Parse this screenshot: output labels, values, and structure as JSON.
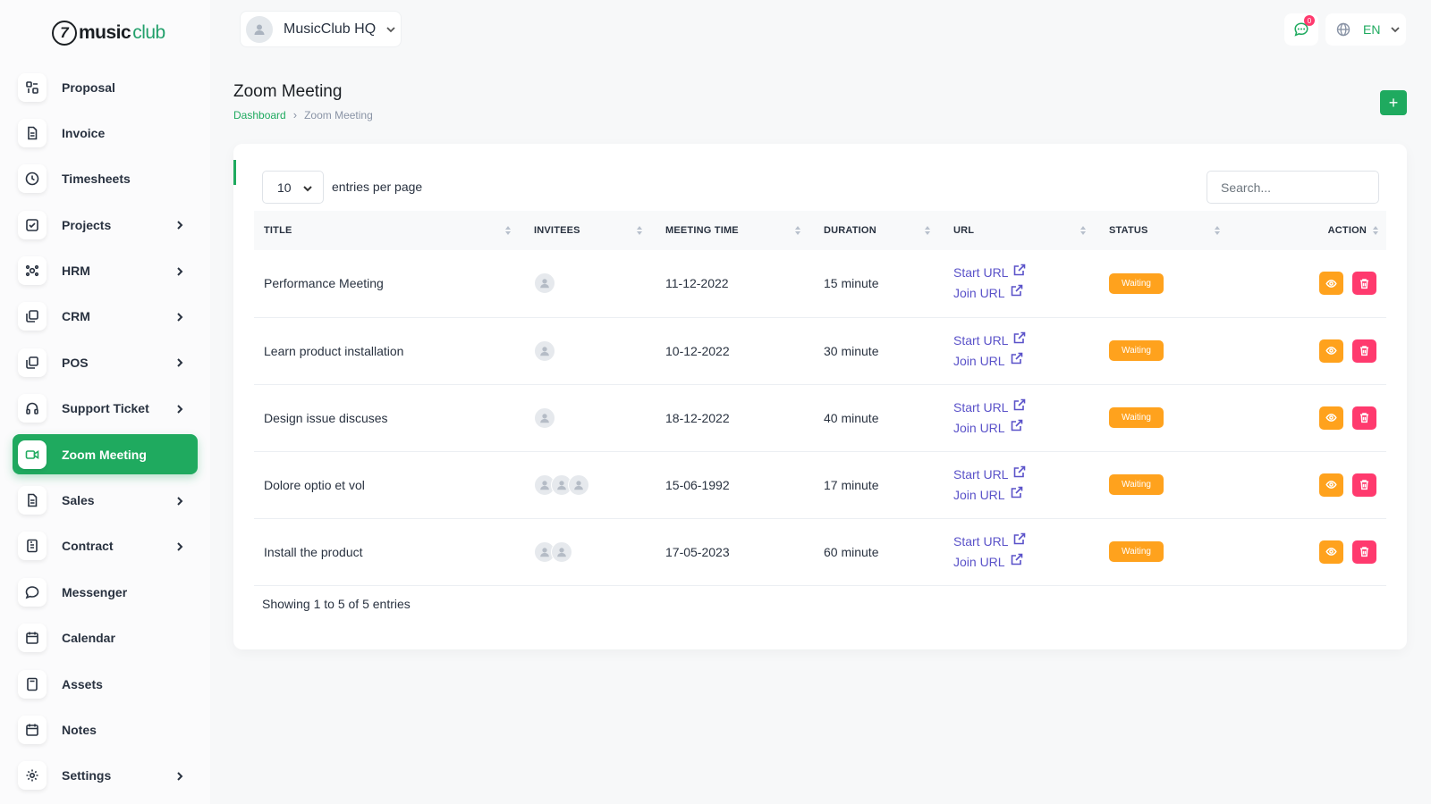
{
  "brand": {
    "mark": "7",
    "word_bold": "music",
    "word_light": "club"
  },
  "sidebar": {
    "items": [
      {
        "label": "Proposal",
        "icon": "proposal-icon",
        "has_children": false,
        "active": false
      },
      {
        "label": "Invoice",
        "icon": "file-icon",
        "has_children": false,
        "active": false
      },
      {
        "label": "Timesheets",
        "icon": "clock-icon",
        "has_children": false,
        "active": false
      },
      {
        "label": "Projects",
        "icon": "checkbox-icon",
        "has_children": true,
        "active": false
      },
      {
        "label": "HRM",
        "icon": "users-icon",
        "has_children": true,
        "active": false
      },
      {
        "label": "CRM",
        "icon": "layers-icon",
        "has_children": true,
        "active": false
      },
      {
        "label": "POS",
        "icon": "layers-icon",
        "has_children": true,
        "active": false
      },
      {
        "label": "Support Ticket",
        "icon": "headphones-icon",
        "has_children": true,
        "active": false
      },
      {
        "label": "Zoom Meeting",
        "icon": "video-icon",
        "has_children": false,
        "active": true
      },
      {
        "label": "Sales",
        "icon": "file-icon",
        "has_children": true,
        "active": false
      },
      {
        "label": "Contract",
        "icon": "contract-icon",
        "has_children": true,
        "active": false
      },
      {
        "label": "Messenger",
        "icon": "message-icon",
        "has_children": false,
        "active": false
      },
      {
        "label": "Calendar",
        "icon": "calendar-icon",
        "has_children": false,
        "active": false
      },
      {
        "label": "Assets",
        "icon": "calculator-icon",
        "has_children": false,
        "active": false
      },
      {
        "label": "Notes",
        "icon": "calendar-icon",
        "has_children": false,
        "active": false
      },
      {
        "label": "Settings",
        "icon": "gear-icon",
        "has_children": true,
        "active": false
      }
    ]
  },
  "header": {
    "workspace": "MusicClub HQ",
    "notification_count": "0",
    "language": "EN"
  },
  "page": {
    "title": "Zoom Meeting",
    "breadcrumb": [
      "Dashboard",
      "Zoom Meeting"
    ],
    "add_label": "+"
  },
  "table_controls": {
    "per_page": "10",
    "per_page_label": "entries per page",
    "search_placeholder": "Search..."
  },
  "table": {
    "columns": [
      "TITLE",
      "INVITEES",
      "MEETING TIME",
      "DURATION",
      "URL",
      "STATUS",
      "ACTION"
    ],
    "start_url_label": "Start URL",
    "join_url_label": "Join URL",
    "rows": [
      {
        "title": "Performance Meeting",
        "invitees": 1,
        "time": "11-12-2022",
        "duration": "15 minute",
        "status": "Waiting"
      },
      {
        "title": "Learn product installation",
        "invitees": 1,
        "time": "10-12-2022",
        "duration": "30 minute",
        "status": "Waiting"
      },
      {
        "title": "Design issue discuses",
        "invitees": 1,
        "time": "18-12-2022",
        "duration": "40 minute",
        "status": "Waiting"
      },
      {
        "title": "Dolore optio et vol",
        "invitees": 3,
        "time": "15-06-1992",
        "duration": "17 minute",
        "status": "Waiting"
      },
      {
        "title": "Install the product",
        "invitees": 2,
        "time": "17-05-2023",
        "duration": "60 minute",
        "status": "Waiting"
      }
    ],
    "footer": "Showing 1 to 5 of 5 entries"
  },
  "colors": {
    "accent": "#1faa5f",
    "status_waiting": "#ffa21d",
    "danger": "#ff3a6e",
    "link": "#5a52c9"
  }
}
